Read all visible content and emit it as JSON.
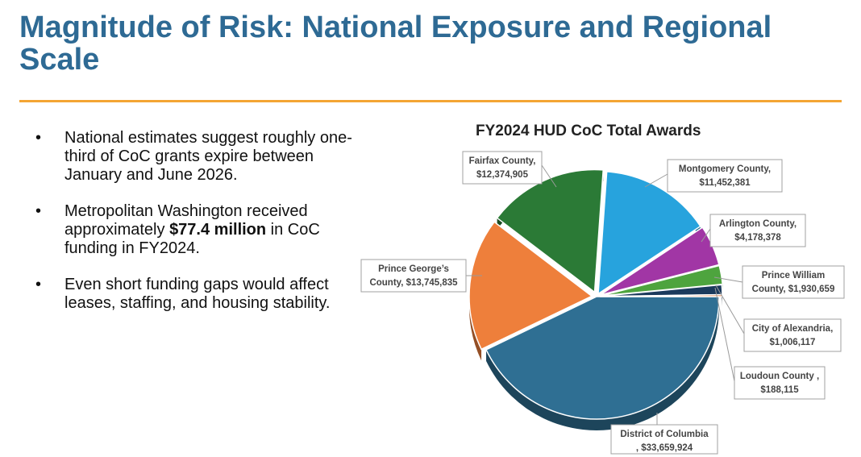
{
  "slide": {
    "title": "Magnitude of Risk: National Exposure and Regional Scale",
    "accent_color": "#f4a534",
    "title_color": "#2e6a94"
  },
  "bullets": [
    {
      "text": "National estimates suggest roughly one-third of CoC grants expire between January and June 2026."
    },
    {
      "pre": "Metropolitan Washington received approximately ",
      "bold": "$77.4 million",
      "post": " in CoC funding in FY2024."
    },
    {
      "text": "Even short funding gaps would affect leases, staffing, and housing stability."
    }
  ],
  "chart_data": {
    "type": "pie",
    "title": "FY2024 HUD CoC Total Awards",
    "slices": [
      {
        "name": "District of Columbia",
        "label": [
          "District of Columbia",
          ", $33,659,924"
        ],
        "value": 33659924,
        "color": "#2f6f93"
      },
      {
        "name": "Prince George's County",
        "label": [
          "Prince George’s",
          "County, $13,745,835"
        ],
        "value": 13745835,
        "color": "#ee7f3b"
      },
      {
        "name": "Fairfax County",
        "label": [
          "Fairfax County,",
          "$12,374,905"
        ],
        "value": 12374905,
        "color": "#2b7a36"
      },
      {
        "name": "Montgomery County",
        "label": [
          "Montgomery County,",
          "$11,452,381"
        ],
        "value": 11452381,
        "color": "#27a3dd"
      },
      {
        "name": "Arlington County",
        "label": [
          "Arlington County,",
          "$4,178,378"
        ],
        "value": 4178378,
        "color": "#a136a5"
      },
      {
        "name": "Prince William County",
        "label": [
          "Prince William",
          "County, $1,930,659"
        ],
        "value": 1930659,
        "color": "#4ea43e"
      },
      {
        "name": "City of Alexandria",
        "label": [
          "City of Alexandria,",
          "$1,006,117"
        ],
        "value": 1006117,
        "color": "#1b3a5c"
      },
      {
        "name": "Loudoun County",
        "label": [
          "Loudoun County ,",
          "$188,115"
        ],
        "value": 188115,
        "color": "#d36b2c"
      }
    ]
  }
}
